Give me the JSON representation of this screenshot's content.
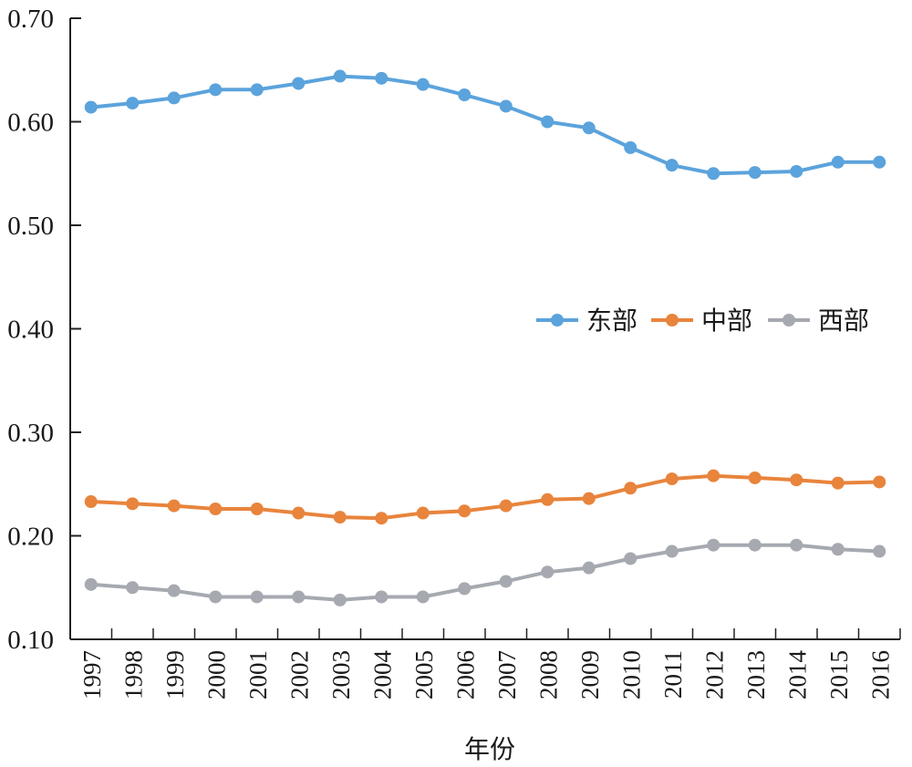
{
  "chart_data": {
    "type": "line",
    "title": "",
    "xlabel": "年份",
    "ylabel": "",
    "ylim": [
      0.1,
      0.7
    ],
    "yticks": [
      "0.10",
      "0.20",
      "0.30",
      "0.40",
      "0.50",
      "0.60",
      "0.70"
    ],
    "ytick_values": [
      0.1,
      0.2,
      0.3,
      0.4,
      0.5,
      0.6,
      0.7
    ],
    "x": [
      "1997",
      "1998",
      "1999",
      "2000",
      "2001",
      "2002",
      "2003",
      "2004",
      "2005",
      "2006",
      "2007",
      "2008",
      "2009",
      "2010",
      "2011",
      "2012",
      "2013",
      "2014",
      "2015",
      "2016"
    ],
    "grid": false,
    "legend_position": "middle-right",
    "series": [
      {
        "name": "东部",
        "color": "#5ba3dc",
        "values": [
          0.614,
          0.618,
          0.623,
          0.631,
          0.631,
          0.637,
          0.644,
          0.642,
          0.636,
          0.626,
          0.615,
          0.6,
          0.594,
          0.575,
          0.558,
          0.55,
          0.551,
          0.552,
          0.561,
          0.561
        ]
      },
      {
        "name": "中部",
        "color": "#e8843c",
        "values": [
          0.233,
          0.231,
          0.229,
          0.226,
          0.226,
          0.222,
          0.218,
          0.217,
          0.222,
          0.224,
          0.229,
          0.235,
          0.236,
          0.246,
          0.255,
          0.258,
          0.256,
          0.254,
          0.251,
          0.252
        ]
      },
      {
        "name": "西部",
        "color": "#a6a9b0",
        "values": [
          0.153,
          0.15,
          0.147,
          0.141,
          0.141,
          0.141,
          0.138,
          0.141,
          0.141,
          0.149,
          0.156,
          0.165,
          0.169,
          0.178,
          0.185,
          0.191,
          0.191,
          0.191,
          0.187,
          0.185
        ]
      }
    ]
  }
}
